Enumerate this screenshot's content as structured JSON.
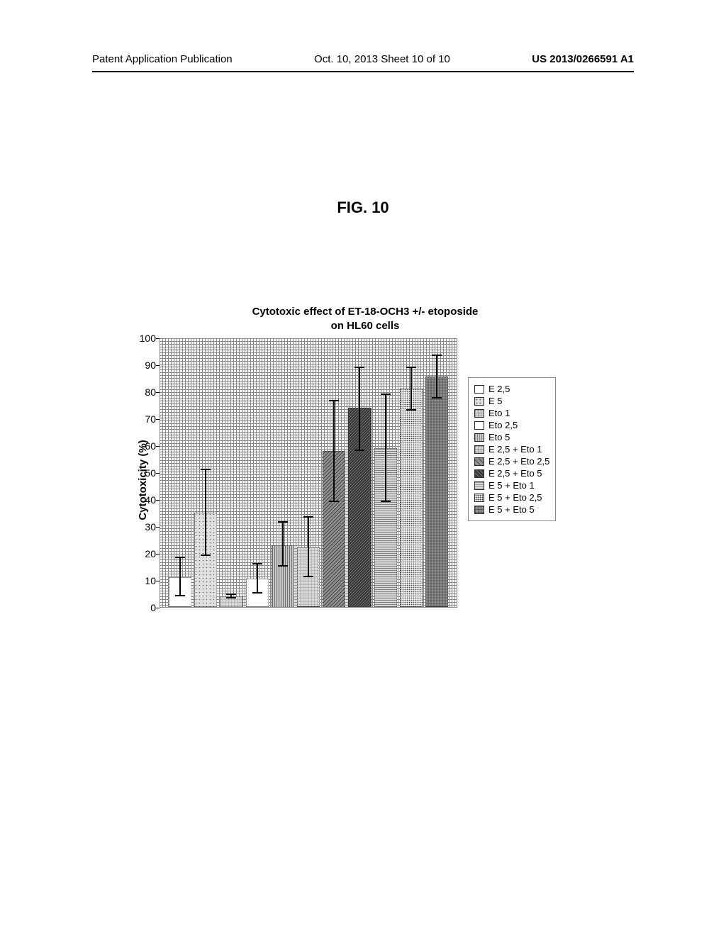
{
  "header": {
    "left": "Patent Application Publication",
    "center": "Oct. 10, 2013  Sheet 10 of 10",
    "right": "US 2013/0266591 A1"
  },
  "figure_label": "FIG. 10",
  "chart": {
    "type": "bar",
    "title_line1": "Cytotoxic effect of ET-18-OCH3 +/- etoposide",
    "title_line2": "on HL60 cells",
    "ylabel": "Cytotoxicity (%)",
    "ylim": [
      0,
      100
    ],
    "ytick_step": 10,
    "background_color": "#ffffff",
    "grid_color": "#888888",
    "yticks": [
      {
        "value": 0,
        "label": "0"
      },
      {
        "value": 10,
        "label": "10"
      },
      {
        "value": 20,
        "label": "20"
      },
      {
        "value": 30,
        "label": "30"
      },
      {
        "value": 40,
        "label": "40"
      },
      {
        "value": 50,
        "label": "50"
      },
      {
        "value": 60,
        "label": "60"
      },
      {
        "value": 70,
        "label": "70"
      },
      {
        "value": 80,
        "label": "80"
      },
      {
        "value": 90,
        "label": "90"
      },
      {
        "value": 100,
        "label": "100"
      }
    ],
    "series": [
      {
        "label": "E 2,5",
        "value": 11,
        "err_low": 7,
        "err_high": 7.5,
        "fill": "#ffffff",
        "pattern": "none"
      },
      {
        "label": "E 5",
        "value": 35,
        "err_low": 16,
        "err_high": 16,
        "fill": "#d8d8d8",
        "pattern": "dots-light"
      },
      {
        "label": "Eto 1",
        "value": 4,
        "err_low": 0.8,
        "err_high": 0.8,
        "fill": "#c8c8c8",
        "pattern": "grid"
      },
      {
        "label": "Eto 2,5",
        "value": 10.5,
        "err_low": 5.5,
        "err_high": 5.5,
        "fill": "#ffffff",
        "pattern": "none"
      },
      {
        "label": "Eto 5",
        "value": 23,
        "err_low": 8,
        "err_high": 8.5,
        "fill": "#b8b8b8",
        "pattern": "vlines"
      },
      {
        "label": "E 2,5 + Eto 1",
        "value": 22,
        "err_low": 11,
        "err_high": 11.5,
        "fill": "#c8c8c8",
        "pattern": "grid"
      },
      {
        "label": "E 2,5 + Eto 2,5",
        "value": 58,
        "err_low": 19,
        "err_high": 18.5,
        "fill": "#808080",
        "pattern": "diag"
      },
      {
        "label": "E 2,5 + Eto 5",
        "value": 74,
        "err_low": 16,
        "err_high": 15,
        "fill": "#3a3a3a",
        "pattern": "diag-dark"
      },
      {
        "label": "E 5 + Eto 1",
        "value": 59,
        "err_low": 20,
        "err_high": 20,
        "fill": "#d0d0d0",
        "pattern": "hlines"
      },
      {
        "label": "E 5 + Eto 2,5",
        "value": 81,
        "err_low": 8,
        "err_high": 8,
        "fill": "#e8e8e8",
        "pattern": "dots-dense"
      },
      {
        "label": "E 5 + Eto 5",
        "value": 85.5,
        "err_low": 8,
        "err_high": 8,
        "fill": "#888888",
        "pattern": "grid-dark"
      }
    ]
  }
}
